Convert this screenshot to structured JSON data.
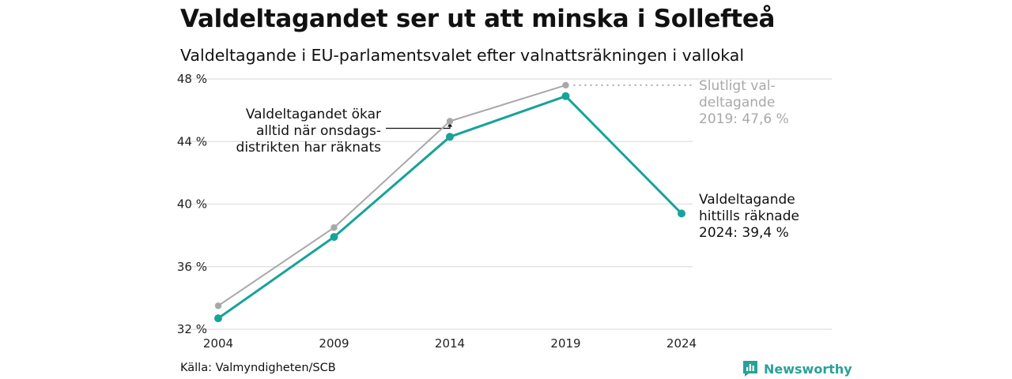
{
  "title": "Valdeltagandet ser ut att minska i Sollefteå",
  "subtitle": "Valdeltagande i EU-parlamentsvalet efter valnattsräkningen i vallokal",
  "source": "Källa: Valmyndigheten/SCB",
  "brand": "Newsworthy",
  "colors": {
    "accent": "#17a398",
    "final": "#a8a8a8",
    "grid": "#e4e4e4"
  },
  "chart_data": {
    "type": "line",
    "x": [
      2004,
      2009,
      2014,
      2019,
      2024
    ],
    "ylim": [
      32,
      48
    ],
    "yticks": [
      "48 %",
      "44 %",
      "40 %",
      "36 %",
      "32 %"
    ],
    "yticks_values": [
      48,
      44,
      40,
      36,
      32
    ],
    "xticks": [
      "2004",
      "2009",
      "2014",
      "2019",
      "2024"
    ],
    "grid": true,
    "series": [
      {
        "name": "Slutligt valdeltagande",
        "values": [
          33.5,
          38.5,
          45.3,
          47.6,
          null
        ]
      },
      {
        "name": "Valdeltagande hittills räknade",
        "values": [
          32.7,
          37.9,
          44.3,
          46.9,
          39.4
        ]
      }
    ],
    "annotations": {
      "wednesday": [
        "Valdeltagandet ökar",
        "alltid när onsdags-",
        "distrikten har räknats"
      ],
      "final": [
        "Slutligt val-",
        "deltagande",
        "2019: 47,6 %"
      ],
      "current": [
        "Valdeltagande",
        "hittills räknade",
        "2024: 39,4 %"
      ]
    }
  }
}
